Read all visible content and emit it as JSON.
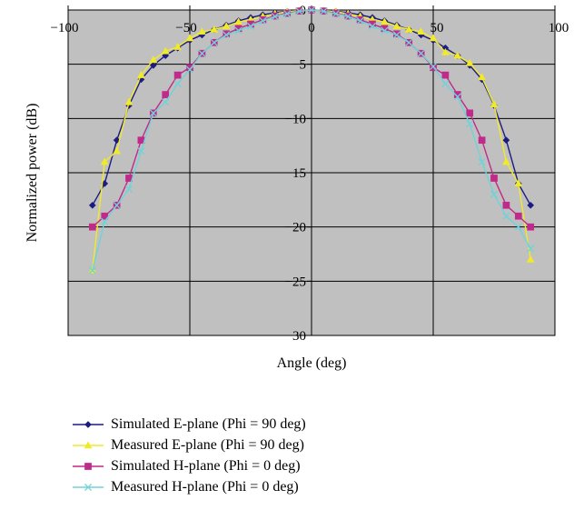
{
  "chart_data": {
    "type": "line",
    "xlabel": "Angle (deg)",
    "ylabel": "Normalized power (dB)",
    "xlim": [
      -100,
      100
    ],
    "ylim": [
      -30,
      0
    ],
    "x_ticks": [
      "−100",
      "−50",
      "0",
      "50",
      "100"
    ],
    "y_ticks": [
      "0",
      "−5",
      "−10",
      "−15",
      "−20",
      "−25",
      "−30"
    ],
    "x_tick_values": [
      -100,
      -50,
      0,
      50,
      100
    ],
    "y_tick_values": [
      0,
      -5,
      -10,
      -15,
      -20,
      -25,
      -30
    ],
    "grid": true,
    "plot_background": "#c0c0c0",
    "legend_position": "bottom",
    "x": [
      -90,
      -85,
      -80,
      -75,
      -70,
      -65,
      -60,
      -55,
      -50,
      -45,
      -40,
      -35,
      -30,
      -25,
      -20,
      -15,
      -10,
      -5,
      0,
      5,
      10,
      15,
      20,
      25,
      30,
      35,
      40,
      45,
      50,
      55,
      60,
      65,
      70,
      75,
      80,
      85,
      90
    ],
    "series": [
      {
        "name": "Simulated E-plane (Phi = 90 deg)",
        "color": "#1c1c80",
        "marker": "diamond",
        "values": [
          -18,
          -16,
          -12,
          -8.8,
          -6.4,
          -5.1,
          -4.2,
          -3.5,
          -2.8,
          -2.3,
          -1.8,
          -1.4,
          -1.0,
          -0.7,
          -0.45,
          -0.25,
          -0.12,
          -0.03,
          0,
          -0.03,
          -0.12,
          -0.25,
          -0.45,
          -0.7,
          -1.0,
          -1.4,
          -1.8,
          -2.3,
          -2.8,
          -3.5,
          -4.2,
          -5.1,
          -6.4,
          -8.8,
          -12,
          -16,
          -18
        ]
      },
      {
        "name": "Measured E-plane (Phi = 90 deg)",
        "color": "#f0ea2a",
        "marker": "triangle",
        "values": [
          -24,
          -14,
          -13,
          -8.5,
          -6,
          -4.6,
          -3.8,
          -3.4,
          -2.6,
          -2.0,
          -1.8,
          -1.5,
          -1.1,
          -0.9,
          -0.6,
          -0.35,
          -0.15,
          -0.05,
          0,
          -0.05,
          -0.15,
          -0.35,
          -0.6,
          -0.9,
          -1.1,
          -1.5,
          -1.8,
          -2.0,
          -2.6,
          -3.9,
          -4.2,
          -4.9,
          -6.2,
          -8.7,
          -14,
          -16,
          -23
        ]
      },
      {
        "name": "Simulated H-plane (Phi = 0 deg)",
        "color": "#c02a8a",
        "marker": "square",
        "values": [
          -20,
          -19,
          -18,
          -15.5,
          -12,
          -9.5,
          -7.8,
          -6.0,
          -5.3,
          -4.0,
          -3.0,
          -2.2,
          -1.7,
          -1.3,
          -0.9,
          -0.55,
          -0.3,
          -0.1,
          0,
          -0.1,
          -0.3,
          -0.55,
          -0.9,
          -1.3,
          -1.7,
          -2.2,
          -3.0,
          -4.0,
          -5.3,
          -6.0,
          -7.8,
          -9.5,
          -12,
          -15.5,
          -18,
          -19,
          -20
        ]
      },
      {
        "name": "Measured H-plane (Phi = 0 deg)",
        "color": "#6fd3d8",
        "marker": "x",
        "values": [
          -24,
          -19.5,
          -18,
          -16.5,
          -13,
          -9.5,
          -8.5,
          -6.8,
          -5.5,
          -4.0,
          -3.0,
          -2.3,
          -1.9,
          -1.5,
          -1.0,
          -0.6,
          -0.35,
          -0.12,
          0,
          -0.12,
          -0.35,
          -0.6,
          -1.0,
          -1.5,
          -1.9,
          -2.3,
          -3.0,
          -4.0,
          -5.2,
          -6.8,
          -8.0,
          -10.5,
          -14,
          -17,
          -19,
          -20,
          -22
        ]
      }
    ]
  }
}
